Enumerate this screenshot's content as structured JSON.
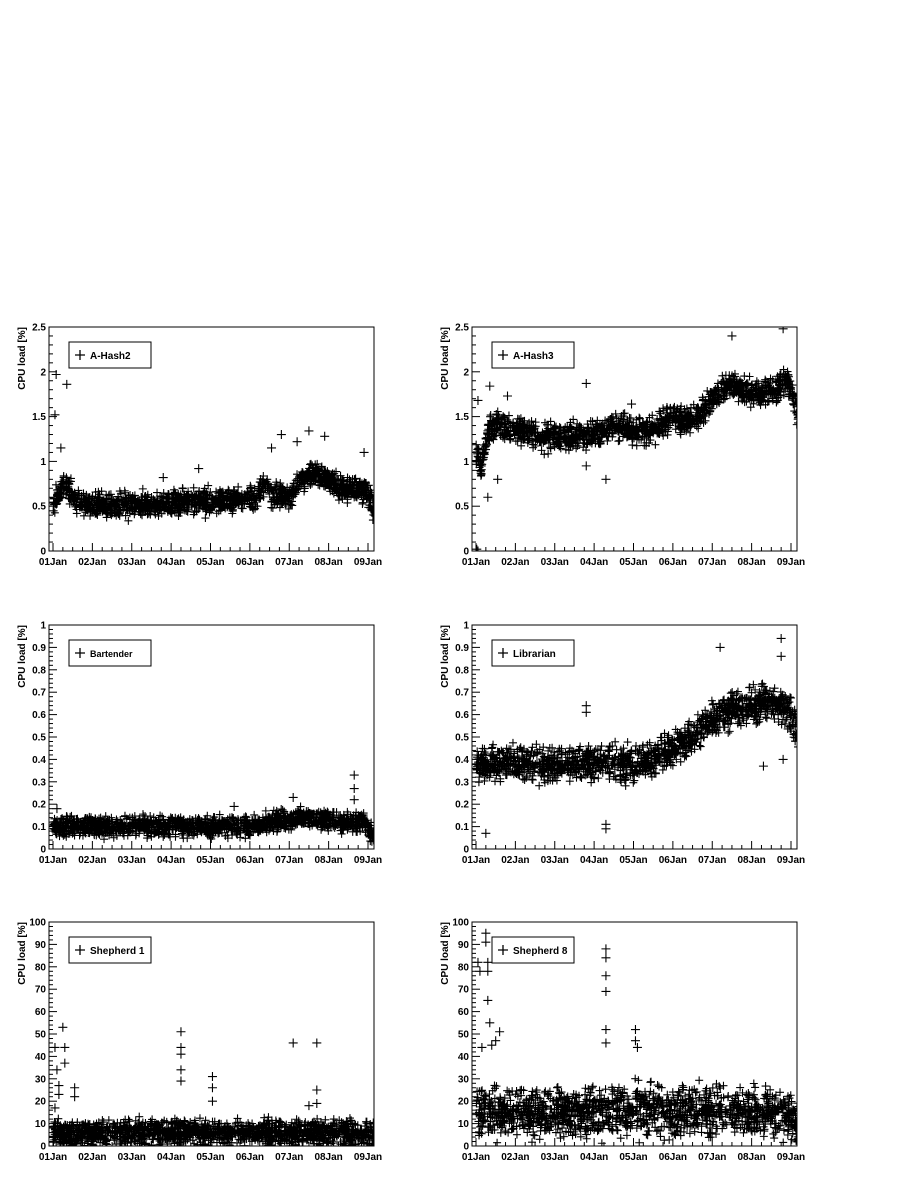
{
  "x_tick_labels": [
    "01Jan",
    "02Jan",
    "03Jan",
    "04Jan",
    "05Jan",
    "06Jan",
    "07Jan",
    "08Jan",
    "09Jan"
  ],
  "chart_data": [
    {
      "type": "scatter",
      "legend": "A-Hash2",
      "ylabel": "CPU load [%]",
      "ylim": [
        0,
        2.5
      ],
      "xlim": [
        0,
        8
      ],
      "x_unit": "days since 01Jan",
      "y_ticks": [
        "0",
        "0.5",
        "1",
        "1.5",
        "2",
        "2.5"
      ],
      "y_tick_values": [
        0,
        0.5,
        1,
        1.5,
        2,
        2.5
      ],
      "marker": "+",
      "baseline": [
        [
          0,
          0.55
        ],
        [
          0.3,
          0.75
        ],
        [
          0.6,
          0.55
        ],
        [
          1.5,
          0.5
        ],
        [
          2.5,
          0.52
        ],
        [
          3.5,
          0.55
        ],
        [
          4.5,
          0.55
        ],
        [
          5.1,
          0.6
        ],
        [
          5.4,
          0.75
        ],
        [
          5.6,
          0.6
        ],
        [
          6,
          0.6
        ],
        [
          6.3,
          0.8
        ],
        [
          6.8,
          0.85
        ],
        [
          7.3,
          0.7
        ],
        [
          7.7,
          0.7
        ],
        [
          8.0,
          0.65
        ],
        [
          8.15,
          0.45
        ]
      ],
      "spread": 0.12,
      "outliers": [
        [
          0.08,
          1.97
        ],
        [
          0.35,
          1.86
        ],
        [
          0.05,
          1.52
        ],
        [
          0.2,
          1.15
        ],
        [
          5.8,
          1.3
        ],
        [
          6.5,
          1.34
        ],
        [
          6.9,
          1.28
        ],
        [
          6.2,
          1.22
        ],
        [
          7.9,
          1.1
        ],
        [
          5.55,
          1.15
        ],
        [
          3.7,
          0.92
        ],
        [
          2.8,
          0.82
        ]
      ],
      "x_end": 8.2,
      "seed": 11
    },
    {
      "type": "scatter",
      "legend": "A-Hash3",
      "ylabel": "CPU load [%]",
      "ylim": [
        0,
        2.5
      ],
      "xlim": [
        0,
        8
      ],
      "x_unit": "days since 01Jan",
      "y_ticks": [
        "0",
        "0.5",
        "1",
        "1.5",
        "2",
        "2.5"
      ],
      "y_tick_values": [
        0,
        0.5,
        1,
        1.5,
        2,
        2.5
      ],
      "marker": "+",
      "baseline": [
        [
          0,
          1.1
        ],
        [
          0.15,
          0.95
        ],
        [
          0.3,
          1.35
        ],
        [
          0.5,
          1.4
        ],
        [
          1.5,
          1.3
        ],
        [
          2,
          1.25
        ],
        [
          3,
          1.3
        ],
        [
          3.5,
          1.4
        ],
        [
          4,
          1.35
        ],
        [
          4.5,
          1.35
        ],
        [
          4.8,
          1.45
        ],
        [
          5.0,
          1.5
        ],
        [
          5.5,
          1.45
        ],
        [
          5.9,
          1.65
        ],
        [
          6.3,
          1.85
        ],
        [
          6.8,
          1.8
        ],
        [
          7.2,
          1.75
        ],
        [
          7.6,
          1.8
        ],
        [
          7.9,
          1.9
        ],
        [
          8.2,
          1.5
        ]
      ],
      "spread": 0.13,
      "outliers": [
        [
          0.02,
          0.02
        ],
        [
          0.05,
          0.0
        ],
        [
          0.35,
          1.84
        ],
        [
          0.8,
          1.73
        ],
        [
          2.8,
          1.87
        ],
        [
          3.95,
          1.64
        ],
        [
          6.5,
          2.4
        ],
        [
          7.8,
          2.48
        ],
        [
          0.55,
          0.8
        ],
        [
          0.05,
          1.68
        ],
        [
          2.8,
          0.95
        ],
        [
          3.3,
          0.8
        ],
        [
          0.3,
          0.6
        ]
      ],
      "x_end": 8.2,
      "seed": 23
    },
    {
      "type": "scatter",
      "legend": "Bartender",
      "ylabel": "CPU load [%]",
      "ylim": [
        0,
        1
      ],
      "xlim": [
        0,
        8
      ],
      "x_unit": "days since 01Jan",
      "y_ticks": [
        "0",
        "0.1",
        "0.2",
        "0.3",
        "0.4",
        "0.5",
        "0.6",
        "0.7",
        "0.8",
        "0.9",
        "1"
      ],
      "y_tick_values": [
        0,
        0.1,
        0.2,
        0.3,
        0.4,
        0.5,
        0.6,
        0.7,
        0.8,
        0.9,
        1
      ],
      "marker": "+",
      "baseline": [
        [
          0,
          0.1
        ],
        [
          1,
          0.1
        ],
        [
          2,
          0.1
        ],
        [
          3,
          0.1
        ],
        [
          4,
          0.1
        ],
        [
          5,
          0.1
        ],
        [
          5.5,
          0.12
        ],
        [
          6,
          0.13
        ],
        [
          6.5,
          0.14
        ],
        [
          7,
          0.13
        ],
        [
          7.5,
          0.12
        ],
        [
          7.9,
          0.12
        ],
        [
          8.2,
          0.04
        ]
      ],
      "spread": 0.04,
      "outliers": [
        [
          7.65,
          0.33
        ],
        [
          7.65,
          0.27
        ],
        [
          7.65,
          0.22
        ],
        [
          6.1,
          0.23
        ],
        [
          4.6,
          0.19
        ],
        [
          0.1,
          0.18
        ]
      ],
      "x_end": 8.2,
      "seed": 37
    },
    {
      "type": "scatter",
      "legend": "Librarian",
      "ylabel": "CPU load [%]",
      "ylim": [
        0,
        1
      ],
      "xlim": [
        0,
        8
      ],
      "x_unit": "days since 01Jan",
      "y_ticks": [
        "0",
        "0.1",
        "0.2",
        "0.3",
        "0.4",
        "0.5",
        "0.6",
        "0.7",
        "0.8",
        "0.9",
        "1"
      ],
      "y_tick_values": [
        0,
        0.1,
        0.2,
        0.3,
        0.4,
        0.5,
        0.6,
        0.7,
        0.8,
        0.9,
        1
      ],
      "marker": "+",
      "baseline": [
        [
          0,
          0.38
        ],
        [
          1,
          0.38
        ],
        [
          2,
          0.38
        ],
        [
          3,
          0.38
        ],
        [
          4,
          0.38
        ],
        [
          4.5,
          0.4
        ],
        [
          5,
          0.45
        ],
        [
          5.5,
          0.5
        ],
        [
          6,
          0.58
        ],
        [
          6.5,
          0.62
        ],
        [
          7,
          0.64
        ],
        [
          7.5,
          0.66
        ],
        [
          7.9,
          0.62
        ],
        [
          8.2,
          0.5
        ]
      ],
      "spread": 0.07,
      "outliers": [
        [
          2.8,
          0.64
        ],
        [
          2.8,
          0.61
        ],
        [
          6.2,
          0.9
        ],
        [
          7.75,
          0.94
        ],
        [
          7.75,
          0.86
        ],
        [
          3.3,
          0.11
        ],
        [
          3.3,
          0.09
        ],
        [
          0.25,
          0.07
        ],
        [
          7.3,
          0.37
        ],
        [
          7.8,
          0.4
        ]
      ],
      "x_end": 8.2,
      "seed": 53
    },
    {
      "type": "scatter",
      "legend": "Shepherd 1",
      "ylabel": "CPU load [%]",
      "ylim": [
        0,
        100
      ],
      "xlim": [
        0,
        8
      ],
      "x_unit": "days since 01Jan",
      "y_ticks": [
        "0",
        "10",
        "20",
        "30",
        "40",
        "50",
        "60",
        "70",
        "80",
        "90",
        "100"
      ],
      "y_tick_values": [
        0,
        10,
        20,
        30,
        40,
        50,
        60,
        70,
        80,
        90,
        100
      ],
      "marker": "+",
      "baseline": [
        [
          0,
          6
        ],
        [
          2,
          6
        ],
        [
          4,
          6
        ],
        [
          6,
          6
        ],
        [
          8,
          6
        ],
        [
          8.2,
          5
        ]
      ],
      "spread": 5,
      "outliers": [
        [
          0.05,
          44
        ],
        [
          0.1,
          34
        ],
        [
          0.15,
          27
        ],
        [
          0.25,
          53
        ],
        [
          0.3,
          44
        ],
        [
          0.3,
          37
        ],
        [
          0.55,
          26
        ],
        [
          0.55,
          22
        ],
        [
          3.25,
          51
        ],
        [
          3.25,
          44
        ],
        [
          3.25,
          41
        ],
        [
          3.25,
          34
        ],
        [
          3.25,
          29
        ],
        [
          4.05,
          31
        ],
        [
          4.05,
          26
        ],
        [
          4.05,
          20
        ],
        [
          6.1,
          46
        ],
        [
          6.5,
          18
        ],
        [
          6.7,
          46
        ],
        [
          6.7,
          25
        ],
        [
          6.7,
          19
        ],
        [
          0.05,
          17
        ],
        [
          0.15,
          23
        ]
      ],
      "x_end": 8.2,
      "seed": 71
    },
    {
      "type": "scatter",
      "legend": "Shepherd 8",
      "ylabel": "CPU load [%]",
      "ylim": [
        0,
        100
      ],
      "xlim": [
        0,
        8
      ],
      "x_unit": "days since 01Jan",
      "y_ticks": [
        "0",
        "10",
        "20",
        "30",
        "40",
        "50",
        "60",
        "70",
        "80",
        "90",
        "100"
      ],
      "y_tick_values": [
        0,
        10,
        20,
        30,
        40,
        50,
        60,
        70,
        80,
        90,
        100
      ],
      "marker": "+",
      "baseline": [
        [
          0,
          15
        ],
        [
          2,
          15
        ],
        [
          4,
          16
        ],
        [
          6,
          15
        ],
        [
          8,
          14
        ],
        [
          8.2,
          10
        ]
      ],
      "spread": 10,
      "outliers": [
        [
          0.05,
          82
        ],
        [
          0.1,
          78
        ],
        [
          0.25,
          95
        ],
        [
          0.25,
          91
        ],
        [
          0.3,
          82
        ],
        [
          0.3,
          78
        ],
        [
          0.3,
          65
        ],
        [
          0.35,
          55
        ],
        [
          0.4,
          45
        ],
        [
          0.6,
          51
        ],
        [
          3.3,
          88
        ],
        [
          3.3,
          84
        ],
        [
          3.3,
          76
        ],
        [
          3.3,
          69
        ],
        [
          3.3,
          52
        ],
        [
          3.3,
          46
        ],
        [
          4.05,
          52
        ],
        [
          4.05,
          47
        ],
        [
          4.1,
          44
        ],
        [
          0.15,
          44
        ],
        [
          0.5,
          47
        ]
      ],
      "x_end": 8.2,
      "seed": 89
    }
  ]
}
